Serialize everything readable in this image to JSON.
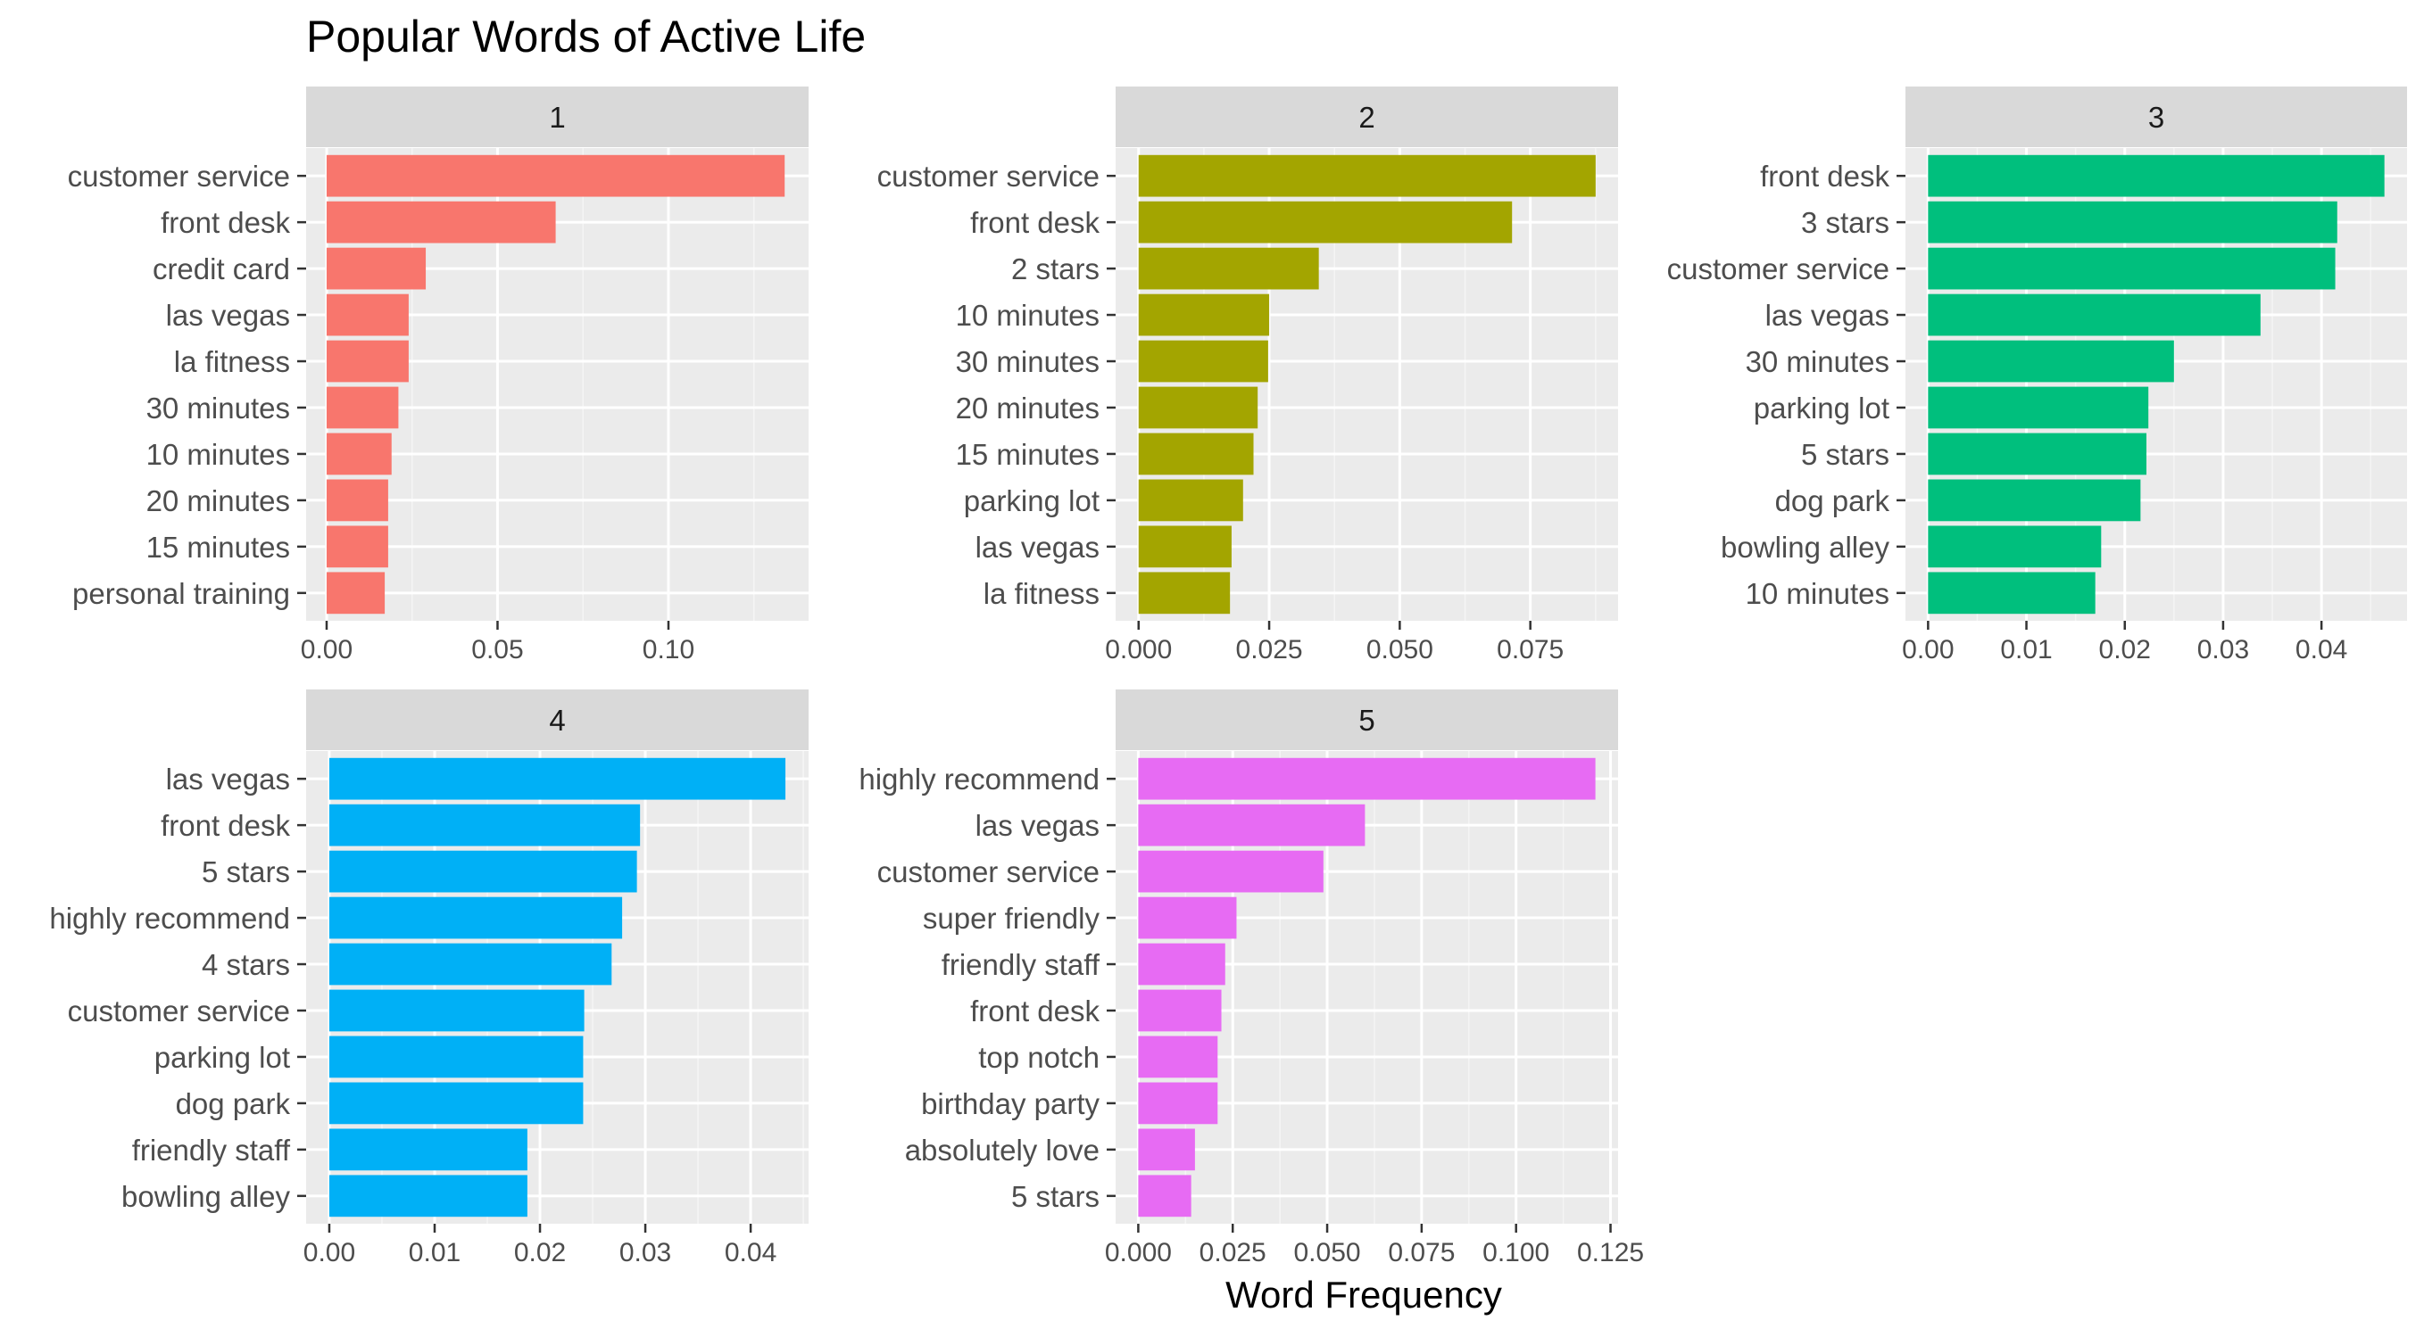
{
  "chart_data": {
    "type": "bar",
    "orientation": "horizontal",
    "title": "Popular Words of Active Life",
    "xlabel": "Word Frequency",
    "ylabel": "",
    "grid": true,
    "legend": "none",
    "facets": [
      {
        "label": "1",
        "color": "#F8766D",
        "xlim": [
          -0.006,
          0.141
        ],
        "ticks": [
          0.0,
          0.05,
          0.1
        ],
        "tick_labels": [
          "0.00",
          "0.05",
          "0.10"
        ],
        "categories": [
          "customer service",
          "front desk",
          "credit card",
          "las vegas",
          "la fitness",
          "30 minutes",
          "10 minutes",
          "20 minutes",
          "15 minutes",
          "personal training"
        ],
        "values": [
          0.134,
          0.067,
          0.029,
          0.024,
          0.024,
          0.021,
          0.019,
          0.018,
          0.018,
          0.017
        ]
      },
      {
        "label": "2",
        "color": "#A3A500",
        "xlim": [
          -0.0044,
          0.0918
        ],
        "ticks": [
          0.0,
          0.025,
          0.05,
          0.075
        ],
        "tick_labels": [
          "0.000",
          "0.025",
          "0.050",
          "0.075"
        ],
        "categories": [
          "customer service",
          "front desk",
          "2 stars",
          "10 minutes",
          "30 minutes",
          "20 minutes",
          "15 minutes",
          "parking lot",
          "las vegas",
          "la fitness"
        ],
        "values": [
          0.0875,
          0.0715,
          0.0345,
          0.025,
          0.0248,
          0.0228,
          0.022,
          0.02,
          0.0178,
          0.0175
        ]
      },
      {
        "label": "3",
        "color": "#00BF7D",
        "xlim": [
          -0.0023,
          0.0487
        ],
        "ticks": [
          0.0,
          0.01,
          0.02,
          0.03,
          0.04
        ],
        "tick_labels": [
          "0.00",
          "0.01",
          "0.02",
          "0.03",
          "0.04"
        ],
        "categories": [
          "front desk",
          "3 stars",
          "customer service",
          "las vegas",
          "30 minutes",
          "parking lot",
          "5 stars",
          "dog park",
          "bowling alley",
          "10 minutes"
        ],
        "values": [
          0.0464,
          0.0416,
          0.0414,
          0.0338,
          0.025,
          0.0224,
          0.0222,
          0.0216,
          0.0176,
          0.017
        ]
      },
      {
        "label": "4",
        "color": "#00B0F6",
        "xlim": [
          -0.0022,
          0.0455
        ],
        "ticks": [
          0.0,
          0.01,
          0.02,
          0.03,
          0.04
        ],
        "tick_labels": [
          "0.00",
          "0.01",
          "0.02",
          "0.03",
          "0.04"
        ],
        "categories": [
          "las vegas",
          "front desk",
          "5 stars",
          "highly recommend",
          "4 stars",
          "customer service",
          "parking lot",
          "dog park",
          "friendly staff",
          "bowling alley"
        ],
        "values": [
          0.0433,
          0.0295,
          0.0292,
          0.0278,
          0.0268,
          0.0242,
          0.0241,
          0.0241,
          0.0188,
          0.0188
        ]
      },
      {
        "label": "5",
        "color": "#E76BF3",
        "xlim": [
          -0.006,
          0.127
        ],
        "ticks": [
          0.0,
          0.025,
          0.05,
          0.075,
          0.1,
          0.125
        ],
        "tick_labels": [
          "0.000",
          "0.025",
          "0.050",
          "0.075",
          "0.100",
          "0.125"
        ],
        "categories": [
          "highly recommend",
          "las vegas",
          "customer service",
          "super friendly",
          "friendly staff",
          "front desk",
          "top notch",
          "birthday party",
          "absolutely love",
          "5 stars"
        ],
        "values": [
          0.121,
          0.06,
          0.049,
          0.026,
          0.023,
          0.022,
          0.021,
          0.021,
          0.015,
          0.014
        ]
      }
    ]
  }
}
